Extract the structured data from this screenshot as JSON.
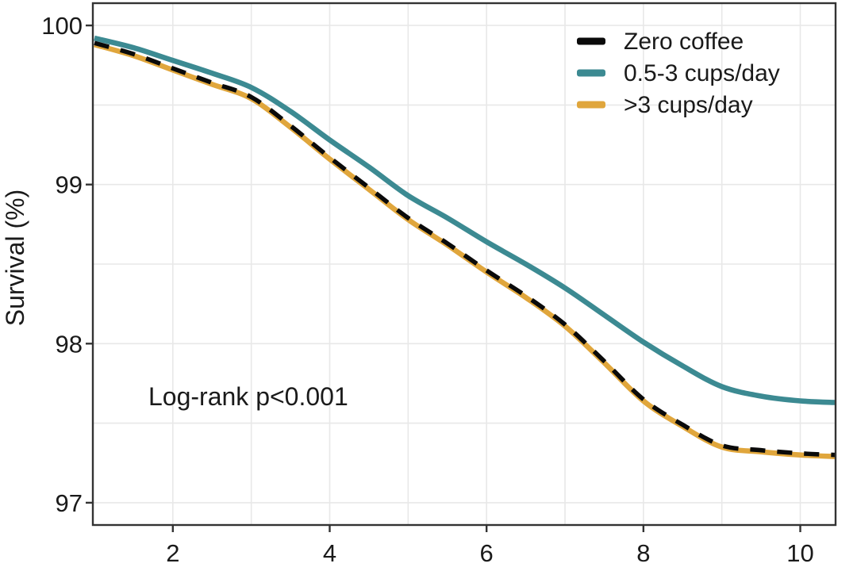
{
  "chart_data": {
    "type": "line",
    "title": "",
    "xlabel": "",
    "ylabel": "Survival (%)",
    "annotation": "Log-rank p<0.001",
    "legend_position": "top-right-inside",
    "grid": true,
    "xlim": [
      0.98,
      10.45
    ],
    "ylim": [
      96.86,
      100.14
    ],
    "x_ticks": [
      2,
      4,
      6,
      8,
      10
    ],
    "y_ticks": [
      100,
      99,
      98,
      97
    ],
    "x_gridlines": [
      2,
      3,
      4,
      5,
      6,
      7,
      8,
      9,
      10
    ],
    "y_gridlines": [
      97,
      97.5,
      98,
      98.5,
      99,
      99.5,
      100
    ],
    "x": [
      1,
      1.5,
      2,
      2.5,
      3,
      3.5,
      4,
      4.5,
      5,
      5.5,
      6,
      6.5,
      7,
      7.5,
      8,
      8.5,
      9,
      9.5,
      10,
      10.45
    ],
    "series": [
      {
        "name": "Zero coffee",
        "color": "#0a0a0a",
        "line_style": "dashed",
        "values": [
          99.89,
          99.82,
          99.73,
          99.64,
          99.55,
          99.37,
          99.17,
          98.98,
          98.79,
          98.63,
          98.46,
          98.3,
          98.12,
          97.89,
          97.65,
          97.49,
          97.36,
          97.33,
          97.31,
          97.3
        ]
      },
      {
        "name": "0.5-3 cups/day",
        "color": "#3C8A92",
        "line_style": "solid",
        "values": [
          99.92,
          99.86,
          99.78,
          99.7,
          99.61,
          99.46,
          99.28,
          99.11,
          98.93,
          98.79,
          98.64,
          98.5,
          98.35,
          98.18,
          98.01,
          97.86,
          97.73,
          97.67,
          97.64,
          97.63
        ]
      },
      {
        "name": ">3 cups/day",
        "color": "#E0A63C",
        "line_style": "dashed",
        "values": [
          99.88,
          99.81,
          99.72,
          99.63,
          99.54,
          99.36,
          99.16,
          98.97,
          98.78,
          98.62,
          98.45,
          98.29,
          98.11,
          97.88,
          97.64,
          97.48,
          97.35,
          97.32,
          97.3,
          97.29
        ]
      }
    ]
  },
  "style_tokens": {
    "grid_color": "#e8e8e8",
    "border_color": "#333333",
    "text_color": "#1a1a1a"
  }
}
